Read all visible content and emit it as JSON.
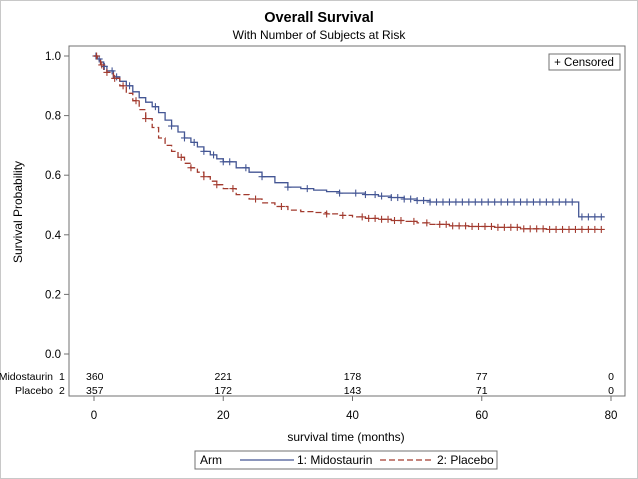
{
  "chart_data": {
    "type": "line",
    "title": "Overall Survival",
    "subtitle": "With Number of Subjects at Risk",
    "xlabel": "survival time (months)",
    "ylabel": "Survival Probability",
    "xlim": [
      -3,
      81
    ],
    "ylim": [
      -0.03,
      1.05
    ],
    "xticks": [
      0,
      20,
      40,
      60,
      80
    ],
    "yticks": [
      0.0,
      0.2,
      0.4,
      0.6,
      0.8,
      1.0
    ],
    "ytick_labels": [
      "0.0",
      "0.2",
      "0.4",
      "0.6",
      "0.8",
      "1.0"
    ],
    "grid": false,
    "censored_legend": "+ Censored",
    "legend": {
      "title": "Arm",
      "placement": "bottom-center"
    },
    "at_risk": {
      "times": [
        0,
        20,
        40,
        60,
        80
      ],
      "rows": [
        {
          "label": "Midostaurin",
          "code": "1",
          "counts": [
            360,
            221,
            178,
            77,
            0
          ]
        },
        {
          "label": "Placebo",
          "code": "2",
          "counts": [
            357,
            172,
            143,
            71,
            0
          ]
        }
      ]
    },
    "series": [
      {
        "name": "1: Midostaurin",
        "color": "#445694",
        "dash": "solid",
        "x": [
          0,
          0.5,
          1,
          1.5,
          2,
          3,
          4,
          5,
          6,
          7,
          8,
          9,
          10,
          11,
          12,
          13,
          14,
          15,
          16,
          17,
          18,
          19,
          20,
          22,
          24,
          26,
          28,
          30,
          32,
          34,
          36,
          38,
          40,
          42,
          44,
          46,
          48,
          50,
          52,
          55,
          58,
          62,
          66,
          70,
          74,
          75,
          79
        ],
        "y": [
          1.0,
          0.99,
          0.98,
          0.965,
          0.95,
          0.93,
          0.915,
          0.9,
          0.88,
          0.86,
          0.845,
          0.83,
          0.81,
          0.785,
          0.765,
          0.745,
          0.725,
          0.71,
          0.695,
          0.68,
          0.668,
          0.655,
          0.645,
          0.625,
          0.61,
          0.595,
          0.575,
          0.56,
          0.555,
          0.55,
          0.545,
          0.54,
          0.54,
          0.535,
          0.53,
          0.525,
          0.52,
          0.515,
          0.51,
          0.51,
          0.51,
          0.51,
          0.51,
          0.51,
          0.51,
          0.46,
          0.46
        ],
        "censored_x": [
          0.3,
          0.8,
          1.6,
          2.8,
          3.5,
          5.5,
          9.5,
          12,
          14,
          15.5,
          17,
          18.5,
          20,
          21,
          23.5,
          26,
          30,
          33,
          38,
          40.5,
          42,
          43.5,
          44.5,
          46,
          47,
          48,
          49,
          50,
          51,
          52,
          53,
          54,
          55,
          56,
          57,
          58,
          59,
          60,
          61,
          62,
          63,
          64,
          65,
          66,
          67,
          68,
          69,
          70,
          71,
          72,
          73,
          74,
          75.5,
          76.5,
          77.5,
          78.5
        ]
      },
      {
        "name": "2: Placebo",
        "color": "#a23a2e",
        "dash": "dashed",
        "x": [
          0,
          0.5,
          1,
          1.5,
          2,
          3,
          4,
          5,
          6,
          7,
          8,
          9,
          10,
          11,
          12,
          13,
          14,
          15,
          16,
          17,
          18,
          19,
          20,
          22,
          24,
          26,
          28,
          30,
          32,
          34,
          36,
          38,
          40,
          42,
          44,
          46,
          48,
          50,
          52,
          55,
          58,
          62,
          66,
          70,
          74,
          78
        ],
        "y": [
          1.0,
          0.985,
          0.97,
          0.955,
          0.945,
          0.925,
          0.9,
          0.875,
          0.85,
          0.82,
          0.79,
          0.76,
          0.725,
          0.7,
          0.68,
          0.66,
          0.64,
          0.625,
          0.61,
          0.595,
          0.58,
          0.568,
          0.555,
          0.535,
          0.52,
          0.507,
          0.495,
          0.483,
          0.478,
          0.475,
          0.47,
          0.465,
          0.46,
          0.455,
          0.452,
          0.448,
          0.445,
          0.44,
          0.435,
          0.43,
          0.428,
          0.425,
          0.42,
          0.418,
          0.418,
          0.418
        ],
        "censored_x": [
          0.4,
          1.2,
          2,
          3.2,
          4.5,
          6.5,
          8,
          13.5,
          15,
          17,
          19,
          21.5,
          25,
          29,
          36,
          38.5,
          41.5,
          42.5,
          43.5,
          44.5,
          45.5,
          46.5,
          47.5,
          49.5,
          51.5,
          53.5,
          54.5,
          55.5,
          56.5,
          57.5,
          58.5,
          59.5,
          60.5,
          61.5,
          62.5,
          63.5,
          64.5,
          65.5,
          66.5,
          67.5,
          68.5,
          69.5,
          70.5,
          71.5,
          72.5,
          73.5,
          74.5,
          75.5,
          76.5,
          77.5,
          78.5
        ]
      }
    ]
  }
}
